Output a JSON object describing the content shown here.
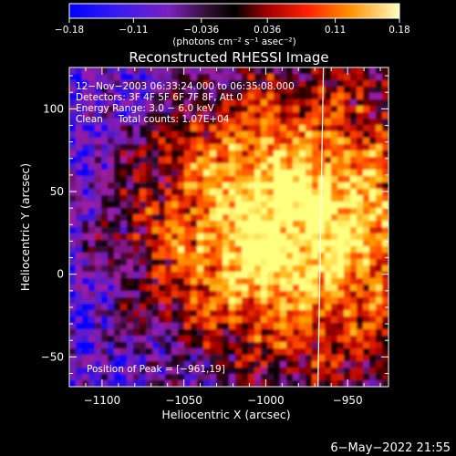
{
  "chart_data": {
    "type": "heatmap",
    "title": "Reconstructed RHESSI Image",
    "xlabel": "Heliocentric X (arcsec)",
    "ylabel": "Heliocentric Y (arcsec)",
    "xlim": [
      -1120,
      -925
    ],
    "ylim": [
      -68,
      125
    ],
    "xticks": [
      -1100,
      -1050,
      -1000,
      -950
    ],
    "xtick_labels": [
      "−1100",
      "−1050",
      "−1000",
      "−950"
    ],
    "yticks": [
      -50,
      0,
      50,
      100
    ],
    "ytick_labels": [
      "−50",
      "0",
      "50",
      "100"
    ],
    "colorbar": {
      "range": [
        -0.18,
        0.18
      ],
      "ticks": [
        -0.18,
        -0.11,
        -0.036,
        0.036,
        0.11,
        0.18
      ],
      "tick_labels": [
        "−0.18",
        "−0.11",
        "−0.036",
        "0.036",
        "0.11",
        "0.18"
      ],
      "unit_label": "(photons cm⁻² s⁻¹ asec⁻²)"
    },
    "annotations": [
      "12−Nov−2003 06:33:24.000 to 06:35:08.000",
      "Detectors: 3F 4F 5F 6F 7F 8F, Att 0",
      "Energy Range: 3.0 − 6.0 keV",
      "Clean     Total counts: 1.07E+04",
      "Position of Peak = [−961,19]"
    ],
    "peak": [
      -961,
      19
    ],
    "limb_line_x": -967,
    "colormap": [
      "#0000ff",
      "#5a1cc8",
      "#a01ea0",
      "#000000",
      "#b00000",
      "#ff4000",
      "#ffa000",
      "#ffff80"
    ],
    "grid": false
  },
  "footer": {
    "timestamp": "6−May−2022 21:55"
  }
}
